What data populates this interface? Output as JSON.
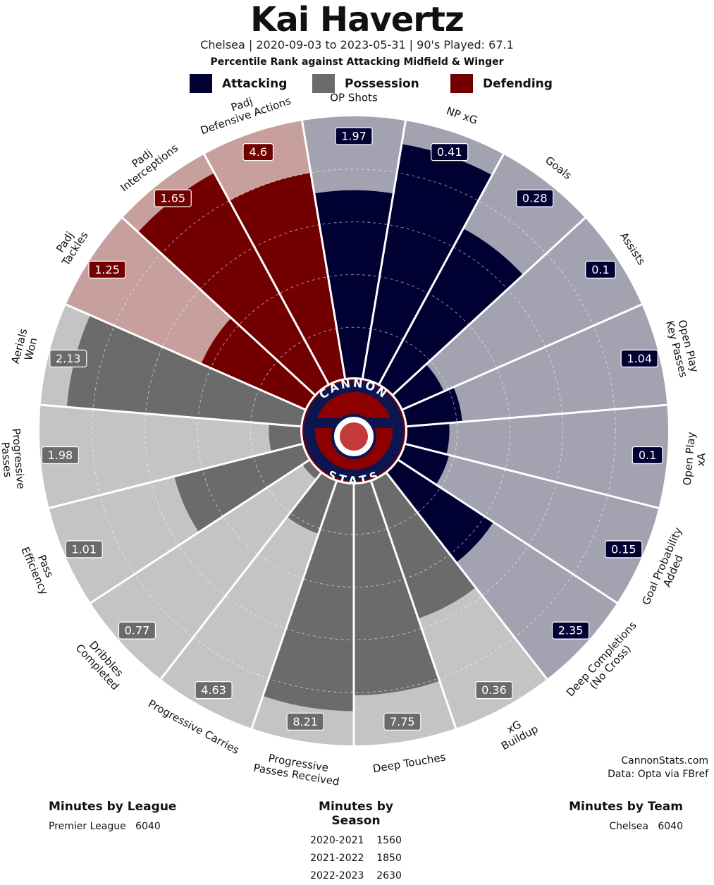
{
  "header": {
    "title": "Kai Havertz",
    "subtitle": "Chelsea | 2020-09-03 to 2023-05-31 | 90's Played: 67.1",
    "subtitle2": "Percentile Rank against Attacking Midfield & Winger"
  },
  "legend": [
    {
      "label": "Attacking",
      "color": "#000033"
    },
    {
      "label": "Possession",
      "color": "#6b6b6b"
    },
    {
      "label": "Defending",
      "color": "#730000"
    }
  ],
  "colors": {
    "attacking_dark": "#000033",
    "attacking_light": "#a3a2b1",
    "possession_dark": "#6b6b6b",
    "possession_light": "#c4c4c4",
    "defending_dark": "#730000",
    "defending_light": "#c7a09d"
  },
  "credit": {
    "site": "CannonStats.com",
    "source": "Data: Opta via FBref"
  },
  "logo": {
    "top_text": "CANNON",
    "bottom_text": "STATS"
  },
  "minutes": {
    "league": {
      "title": "Minutes by League",
      "rows": [
        {
          "label": "Premier League",
          "value": "6040"
        }
      ]
    },
    "season": {
      "title": "Minutes by Season",
      "rows": [
        {
          "label": "2020-2021",
          "value": "1560"
        },
        {
          "label": "2021-2022",
          "value": "1850"
        },
        {
          "label": "2022-2023",
          "value": "2630"
        }
      ]
    },
    "team": {
      "title": "Minutes by Team",
      "rows": [
        {
          "label": "Chelsea",
          "value": "6040"
        }
      ]
    }
  },
  "chart_data": {
    "type": "polar-bar",
    "title": "Kai Havertz",
    "rlim": [
      0,
      100
    ],
    "grid": true,
    "series": [
      {
        "label": [
          "OP Shots"
        ],
        "group": "Attacking",
        "value": "1.97",
        "percentile": 72
      },
      {
        "label": [
          "NP xG"
        ],
        "group": "Attacking",
        "value": "0.41",
        "percentile": 91
      },
      {
        "label": [
          "Goals"
        ],
        "group": "Attacking",
        "value": "0.28",
        "percentile": 68
      },
      {
        "label": [
          "Assists"
        ],
        "group": "Attacking",
        "value": "0.1",
        "percentile": 18
      },
      {
        "label": [
          "Open Play",
          "Key Passes"
        ],
        "group": "Attacking",
        "value": "1.04",
        "percentile": 22
      },
      {
        "label": [
          "Open Play",
          "xA"
        ],
        "group": "Attacking",
        "value": "0.1",
        "percentile": 17
      },
      {
        "label": [
          "Goal Probability",
          "Added"
        ],
        "group": "Attacking",
        "value": "0.15",
        "percentile": 18
      },
      {
        "label": [
          "Deep Completions",
          "(No Cross)"
        ],
        "group": "Attacking",
        "value": "2.35",
        "percentile": 44
      },
      {
        "label": [
          "xG",
          "Buildup"
        ],
        "group": "Possession",
        "value": "0.36",
        "percentile": 56
      },
      {
        "label": [
          "Deep Touches"
        ],
        "group": "Possession",
        "value": "7.75",
        "percentile": 81
      },
      {
        "label": [
          "Progressive",
          "Passes Received"
        ],
        "group": "Possession",
        "value": "8.21",
        "percentile": 87
      },
      {
        "label": [
          "Progressive Carries"
        ],
        "group": "Possession",
        "value": "4.63",
        "percentile": 22
      },
      {
        "label": [
          "Dribbles",
          "Completed"
        ],
        "group": "Possession",
        "value": "0.77",
        "percentile": 4
      },
      {
        "label": [
          "Pass",
          "Efficiency"
        ],
        "group": "Possession",
        "value": "1.01",
        "percentile": 51
      },
      {
        "label": [
          "Progressive",
          "Passes"
        ],
        "group": "Possession",
        "value": "1.98",
        "percentile": 13
      },
      {
        "label": [
          "Aerials",
          "Won"
        ],
        "group": "Possession",
        "value": "2.13",
        "percentile": 90
      },
      {
        "label": [
          "Padj",
          "Tackles"
        ],
        "group": "Defending",
        "value": "1.25",
        "percentile": 44
      },
      {
        "label": [
          "Padj",
          "Interceptions"
        ],
        "group": "Defending",
        "value": "1.65",
        "percentile": 92
      },
      {
        "label": [
          "Padj",
          "Defensive Actions"
        ],
        "group": "Defending",
        "value": "4.6",
        "percentile": 80
      }
    ]
  }
}
